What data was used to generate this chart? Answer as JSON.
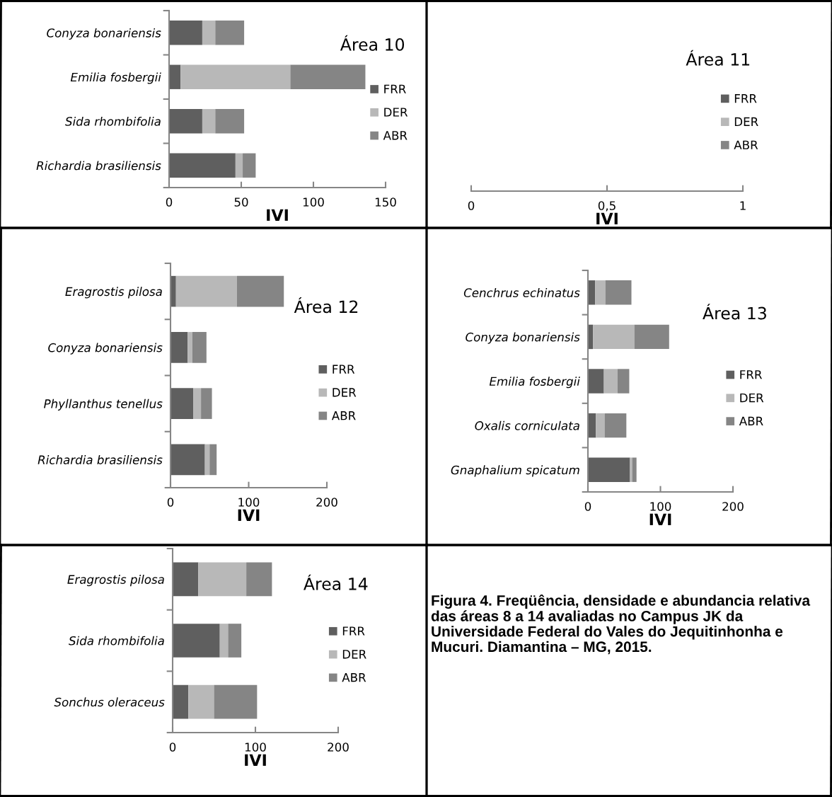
{
  "chart_data": [
    {
      "type": "bar",
      "orientation": "horizontal",
      "stacked": true,
      "title": "Área 10",
      "xlabel": "IVI",
      "categories": [
        "Conyza bonariensis",
        "Emilia fosbergii",
        "Sida rhombifolia",
        "Richardia brasiliensis"
      ],
      "series": [
        {
          "name": "FRR",
          "color": "#5f5f5f",
          "values": [
            23,
            8,
            23,
            46
          ]
        },
        {
          "name": "DER",
          "color": "#b8b8b8",
          "values": [
            9,
            76,
            9,
            5
          ]
        },
        {
          "name": "ABR",
          "color": "#858585",
          "values": [
            20,
            52,
            20,
            9
          ]
        }
      ],
      "xlim": [
        0,
        150
      ],
      "xticks": [
        0,
        50,
        100,
        150
      ],
      "legend": "right",
      "grid": false
    },
    {
      "type": "other",
      "title": "Área 11",
      "xlabel": "IVI",
      "series": [
        {
          "name": "FRR",
          "color": "#5f5f5f"
        },
        {
          "name": "DER",
          "color": "#b8b8b8"
        },
        {
          "name": "ABR",
          "color": "#858585"
        }
      ],
      "annotations": [
        "0",
        "0,5",
        "1"
      ],
      "legend": "right"
    },
    {
      "type": "bar",
      "orientation": "horizontal",
      "stacked": true,
      "title": "Área 12",
      "xlabel": "IVI",
      "categories": [
        "Eragrostis pilosa",
        "Conyza bonariensis",
        "Phyllanthus tenellus",
        "Richardia brasiliensis"
      ],
      "series": [
        {
          "name": "FRR",
          "color": "#5f5f5f",
          "values": [
            7,
            22,
            29,
            44
          ]
        },
        {
          "name": "DER",
          "color": "#b8b8b8",
          "values": [
            78,
            6,
            10,
            6
          ]
        },
        {
          "name": "ABR",
          "color": "#858585",
          "values": [
            60,
            18,
            14,
            9
          ]
        }
      ],
      "xlim": [
        0,
        200
      ],
      "xticks": [
        0,
        100,
        200
      ],
      "legend": "right",
      "grid": false
    },
    {
      "type": "bar",
      "orientation": "horizontal",
      "stacked": true,
      "title": "Área 13",
      "xlabel": "IVI",
      "categories": [
        "Cenchrus echinatus",
        "Conyza bonariensis",
        "Emilia fosbergii",
        "Oxalis corniculata",
        "Gnaphalium spicatum"
      ],
      "series": [
        {
          "name": "FRR",
          "color": "#5f5f5f",
          "values": [
            10,
            7,
            22,
            11,
            58
          ]
        },
        {
          "name": "DER",
          "color": "#b8b8b8",
          "values": [
            14,
            57,
            19,
            12,
            3
          ]
        },
        {
          "name": "ABR",
          "color": "#858585",
          "values": [
            36,
            48,
            16,
            30,
            6
          ]
        }
      ],
      "xlim": [
        0,
        200
      ],
      "xticks": [
        0,
        100,
        200
      ],
      "legend": "right",
      "grid": false
    },
    {
      "type": "bar",
      "orientation": "horizontal",
      "stacked": true,
      "title": "Área 14",
      "xlabel": "IVI",
      "categories": [
        "Eragrostis pilosa",
        "Sida rhombifolia",
        "Sonchus oleraceus"
      ],
      "series": [
        {
          "name": "FRR",
          "color": "#5f5f5f",
          "values": [
            31,
            57,
            19
          ]
        },
        {
          "name": "DER",
          "color": "#b8b8b8",
          "values": [
            58,
            10,
            31
          ]
        },
        {
          "name": "ABR",
          "color": "#858585",
          "values": [
            31,
            16,
            52
          ]
        }
      ],
      "xlim": [
        0,
        200
      ],
      "xticks": [
        0,
        100,
        200
      ],
      "legend": "right",
      "grid": false
    },
    {
      "type": "other",
      "annotations": [
        "Figura 4. Freqüência, densidade e abundancia relativa das áreas 8 a 14 avaliadas no Campus JK da Universidade Federal do Vales do Jequitinhonha e Mucuri. Diamantina – MG, 2015."
      ]
    }
  ]
}
